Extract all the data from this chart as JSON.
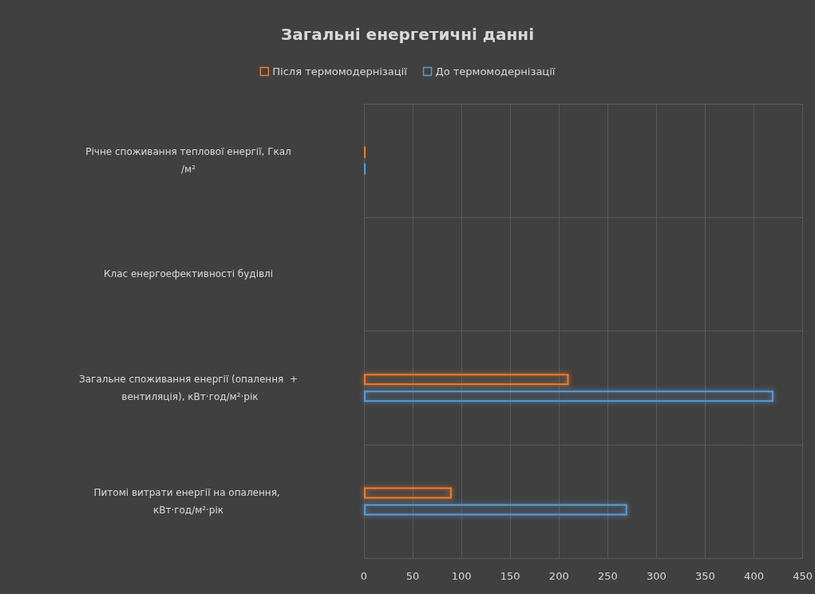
{
  "chart_data": {
    "type": "bar",
    "orientation": "horizontal",
    "title": "Загальні енергетичні данні",
    "categories": [
      "Річне споживання теплової енергії, Гкал/м²",
      "Клас енергоефективності будівлі",
      "Загальне споживання енергії (опалення  + вентиляція), кВт·год/м²·рік",
      "Питомі витрати енергії на опалення, кВт·год/м²·рік"
    ],
    "series": [
      {
        "name": "Після термомодернізації",
        "color": "#ed7d31",
        "values": [
          2,
          null,
          210,
          90
        ]
      },
      {
        "name": "До термомодернізації",
        "color": "#5b9bd5",
        "values": [
          2,
          null,
          420,
          270
        ]
      }
    ],
    "xlim": [
      0,
      450
    ],
    "xticks": [
      0,
      50,
      100,
      150,
      200,
      250,
      300,
      350,
      400,
      450
    ],
    "grid": true,
    "legend": "top"
  }
}
